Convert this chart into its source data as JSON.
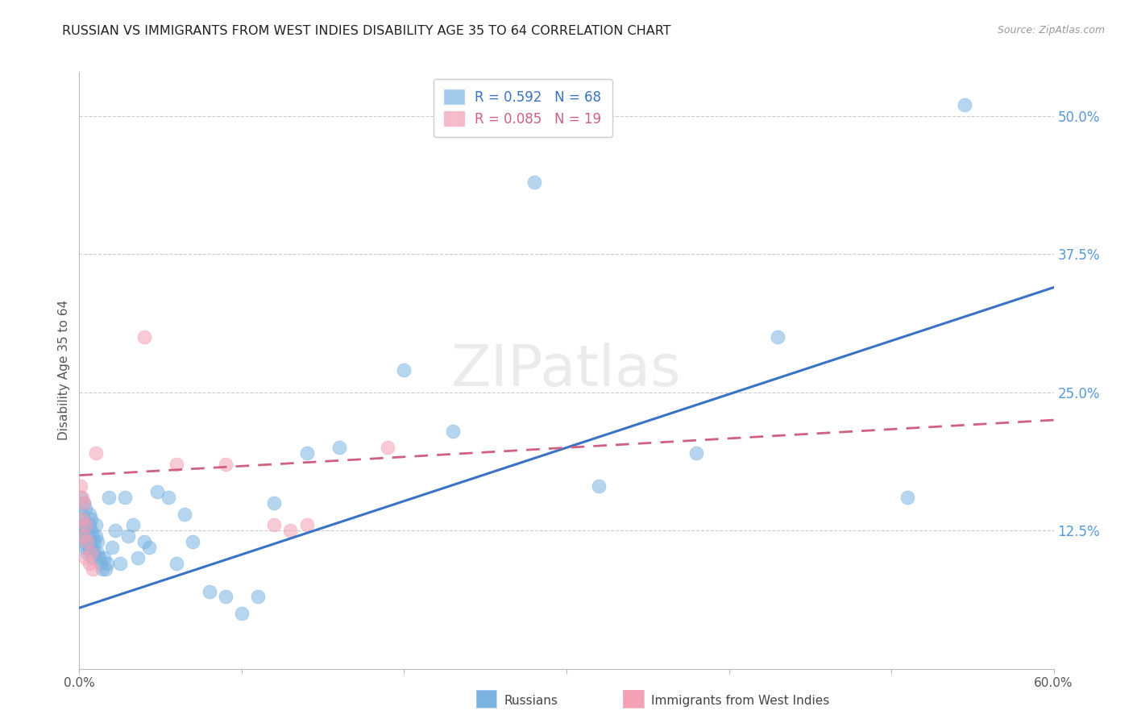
{
  "title": "RUSSIAN VS IMMIGRANTS FROM WEST INDIES DISABILITY AGE 35 TO 64 CORRELATION CHART",
  "source": "Source: ZipAtlas.com",
  "ylabel": "Disability Age 35 to 64",
  "xmin": 0.0,
  "xmax": 0.6,
  "ymin": 0.0,
  "ymax": 0.54,
  "xticks": [
    0.0,
    0.1,
    0.2,
    0.3,
    0.4,
    0.5,
    0.6
  ],
  "xticklabels": [
    "0.0%",
    "",
    "",
    "",
    "",
    "",
    "60.0%"
  ],
  "yticks": [
    0.125,
    0.25,
    0.375,
    0.5
  ],
  "yticklabels": [
    "12.5%",
    "25.0%",
    "37.5%",
    "50.0%"
  ],
  "russian_R": 0.592,
  "russian_N": 68,
  "westindies_R": 0.085,
  "westindies_N": 19,
  "russian_color": "#7ab3e0",
  "westindies_color": "#f4a0b5",
  "trendline_russian_color": "#3a72c4",
  "trendline_westindies_color": "#d06080",
  "background_color": "#ffffff",
  "grid_color": "#cccccc",
  "watermark": "ZIPatlas",
  "legend_label_russian": "Russians",
  "legend_label_westindies": "Immigrants from West Indies",
  "russian_trendline_x": [
    0.0,
    0.6
  ],
  "russian_trendline_y": [
    0.055,
    0.345
  ],
  "westindies_trendline_x": [
    0.0,
    0.6
  ],
  "westindies_trendline_y": [
    0.175,
    0.225
  ],
  "russian_x": [
    0.001,
    0.002,
    0.002,
    0.002,
    0.003,
    0.003,
    0.003,
    0.003,
    0.004,
    0.004,
    0.004,
    0.004,
    0.005,
    0.005,
    0.005,
    0.006,
    0.006,
    0.006,
    0.006,
    0.007,
    0.007,
    0.007,
    0.007,
    0.008,
    0.008,
    0.008,
    0.009,
    0.009,
    0.01,
    0.01,
    0.011,
    0.011,
    0.012,
    0.013,
    0.014,
    0.015,
    0.016,
    0.017,
    0.018,
    0.02,
    0.022,
    0.025,
    0.028,
    0.03,
    0.033,
    0.036,
    0.04,
    0.043,
    0.048,
    0.055,
    0.06,
    0.065,
    0.07,
    0.08,
    0.09,
    0.1,
    0.11,
    0.12,
    0.14,
    0.16,
    0.2,
    0.23,
    0.28,
    0.32,
    0.38,
    0.43,
    0.51,
    0.545
  ],
  "russian_y": [
    0.155,
    0.14,
    0.13,
    0.12,
    0.15,
    0.135,
    0.125,
    0.115,
    0.145,
    0.13,
    0.12,
    0.11,
    0.125,
    0.115,
    0.105,
    0.14,
    0.13,
    0.12,
    0.11,
    0.135,
    0.125,
    0.115,
    0.105,
    0.12,
    0.11,
    0.1,
    0.115,
    0.105,
    0.13,
    0.12,
    0.115,
    0.105,
    0.1,
    0.095,
    0.09,
    0.1,
    0.09,
    0.095,
    0.155,
    0.11,
    0.125,
    0.095,
    0.155,
    0.12,
    0.13,
    0.1,
    0.115,
    0.11,
    0.16,
    0.155,
    0.095,
    0.14,
    0.115,
    0.07,
    0.065,
    0.05,
    0.065,
    0.15,
    0.195,
    0.2,
    0.27,
    0.215,
    0.44,
    0.165,
    0.195,
    0.3,
    0.155,
    0.51
  ],
  "westindies_x": [
    0.001,
    0.002,
    0.002,
    0.003,
    0.003,
    0.004,
    0.004,
    0.005,
    0.006,
    0.007,
    0.008,
    0.01,
    0.04,
    0.06,
    0.09,
    0.12,
    0.13,
    0.14,
    0.19
  ],
  "westindies_y": [
    0.165,
    0.155,
    0.135,
    0.15,
    0.12,
    0.13,
    0.1,
    0.115,
    0.095,
    0.105,
    0.09,
    0.195,
    0.3,
    0.185,
    0.185,
    0.13,
    0.125,
    0.13,
    0.2
  ]
}
